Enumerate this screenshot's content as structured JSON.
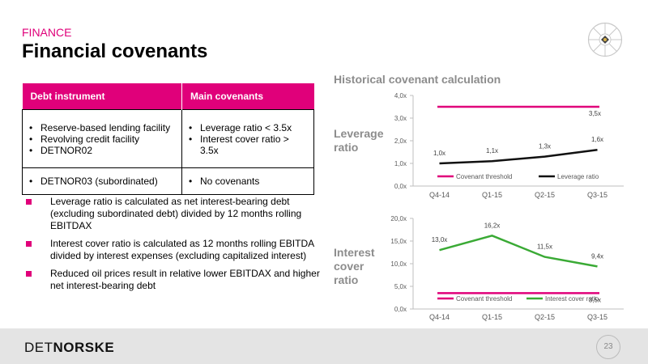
{
  "header": {
    "section": "FINANCE",
    "title": "Financial covenants"
  },
  "table": {
    "headers": [
      "Debt instrument",
      "Main covenants"
    ],
    "rows": [
      {
        "instrument": [
          "Reserve-based lending facility",
          "Revolving credit facility",
          "DETNOR02"
        ],
        "covenants": [
          "Leverage ratio < 3.5x",
          "Interest cover ratio > 3.5x"
        ]
      },
      {
        "instrument": [
          "DETNOR03 (subordinated)"
        ],
        "covenants": [
          "No covenants"
        ]
      }
    ]
  },
  "notes": [
    "Leverage ratio is calculated as net interest-bearing debt (excluding subordinated debt) divided by 12 months rolling EBITDAX",
    "Interest cover ratio is calculated as 12 months rolling EBITDA divided by interest expenses (excluding capitalized interest)",
    "Reduced oil prices result in relative lower EBITDAX and higher net interest-bearing debt"
  ],
  "charts_title": "Historical covenant calculation",
  "chart_data": [
    {
      "type": "line",
      "panel_label": "Leverage ratio",
      "categories": [
        "Q4-14",
        "Q1-15",
        "Q2-15",
        "Q3-15"
      ],
      "ylim": [
        0,
        4
      ],
      "yticks": [
        "0,0x",
        "1,0x",
        "2,0x",
        "3,0x",
        "4,0x"
      ],
      "series": [
        {
          "name": "Covenant threshold",
          "values": [
            3.5,
            3.5,
            3.5,
            3.5
          ],
          "color": "#e0007a",
          "labels": [
            "",
            "",
            "",
            "3,5x"
          ]
        },
        {
          "name": "Leverage ratio",
          "values": [
            1.0,
            1.1,
            1.3,
            1.6
          ],
          "color": "#111111",
          "labels": [
            "1,0x",
            "1,1x",
            "1,3x",
            "1,6x"
          ]
        }
      ],
      "legend_position": "bottom"
    },
    {
      "type": "line",
      "panel_label": "Interest cover ratio",
      "categories": [
        "Q4-14",
        "Q1-15",
        "Q2-15",
        "Q3-15"
      ],
      "ylim": [
        0,
        20
      ],
      "yticks": [
        "0,0x",
        "5,0x",
        "10,0x",
        "15,0x",
        "20,0x"
      ],
      "series": [
        {
          "name": "Covenant threshold",
          "values": [
            3.5,
            3.5,
            3.5,
            3.5
          ],
          "color": "#e0007a",
          "labels": [
            "",
            "",
            "",
            "3,5x"
          ]
        },
        {
          "name": "Interest cover ratio",
          "values": [
            13.0,
            16.2,
            11.5,
            9.4
          ],
          "color": "#3aaa35",
          "labels": [
            "13,0x",
            "16,2x",
            "11,5x",
            "9,4x"
          ]
        }
      ],
      "legend_position": "bottom"
    }
  ],
  "footer": {
    "logo_light": "DET",
    "logo_bold": "NORSKE",
    "page": "23"
  },
  "colors": {
    "accent": "#e0007a",
    "green": "#3aaa35",
    "footer_bg": "#e4e4e4"
  }
}
